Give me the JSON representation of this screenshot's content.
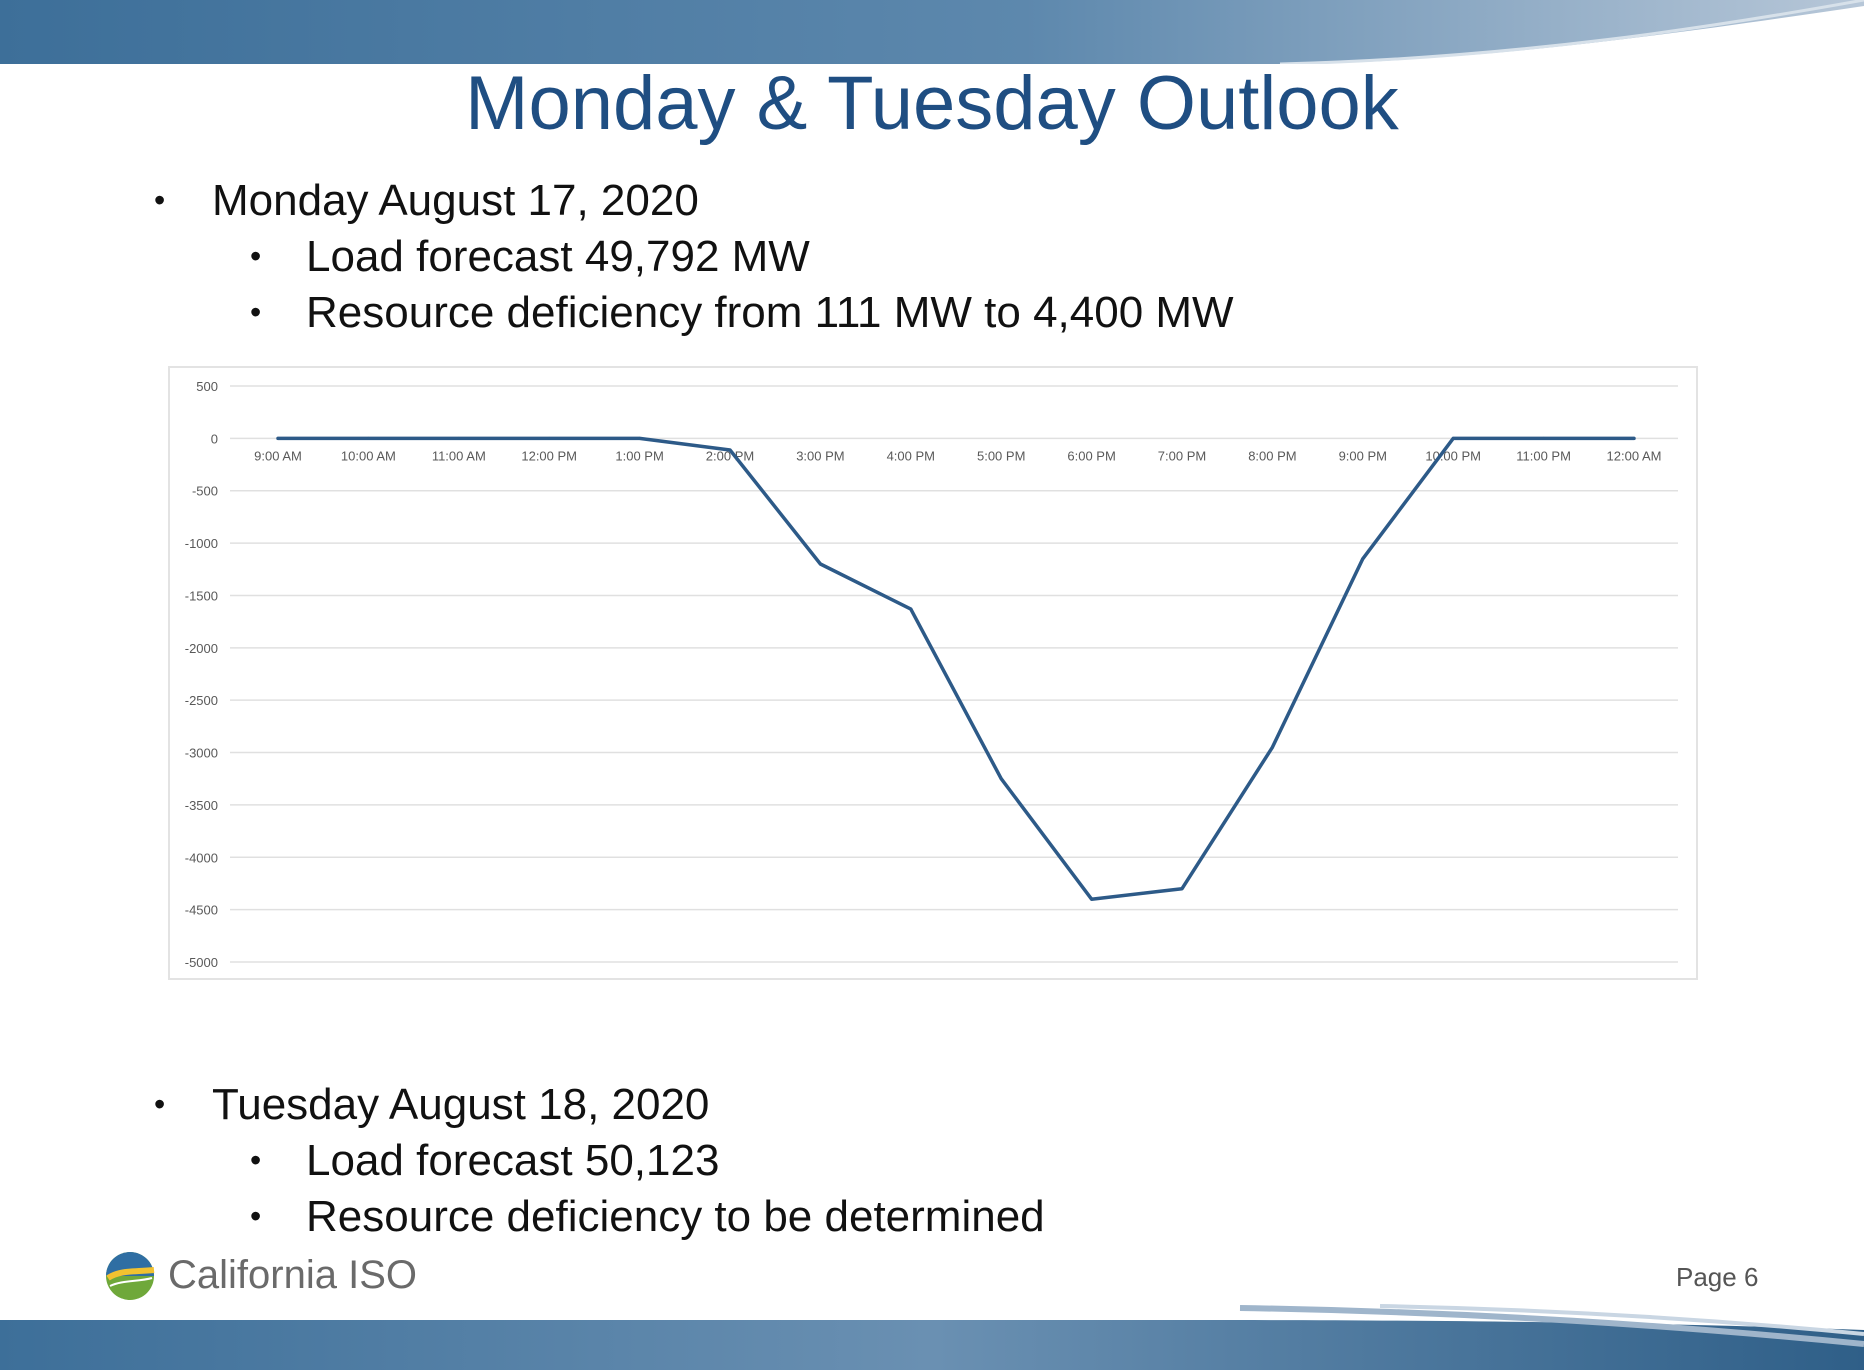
{
  "slide": {
    "title": "Monday & Tuesday Outlook",
    "monday": {
      "heading": "Monday August 17, 2020",
      "items": [
        "Load forecast 49,792 MW",
        "Resource deficiency from 111 MW to 4,400 MW"
      ]
    },
    "tuesday": {
      "heading": "Tuesday August 18, 2020",
      "items": [
        "Load forecast 50,123",
        "Resource deficiency to be determined"
      ]
    },
    "logo_text": "California ISO",
    "page_label": "Page 6"
  },
  "colors": {
    "title": "#1f4e82",
    "band_dark": "#3d6f99",
    "band_light": "#aebfd2",
    "line": "#2d5a88",
    "grid": "#e0e0e0"
  },
  "chart_data": {
    "type": "line",
    "x": [
      "9:00 AM",
      "10:00 AM",
      "11:00 AM",
      "12:00 PM",
      "1:00 PM",
      "2:00 PM",
      "3:00 PM",
      "4:00 PM",
      "5:00 PM",
      "6:00 PM",
      "7:00 PM",
      "8:00 PM",
      "9:00 PM",
      "10:00 PM",
      "11:00 PM",
      "12:00 AM"
    ],
    "series": [
      {
        "values": [
          0,
          0,
          0,
          0,
          0,
          -111,
          -1200,
          -1630,
          -3250,
          -4400,
          -4300,
          -2950,
          -1150,
          0,
          0,
          0
        ]
      }
    ],
    "yticks": [
      500,
      0,
      -500,
      -1000,
      -1500,
      -2000,
      -2500,
      -3000,
      -3500,
      -4000,
      -4500,
      -5000
    ],
    "ylim": [
      -5000,
      500
    ],
    "grid": true,
    "title": "",
    "xlabel": "",
    "ylabel": ""
  }
}
